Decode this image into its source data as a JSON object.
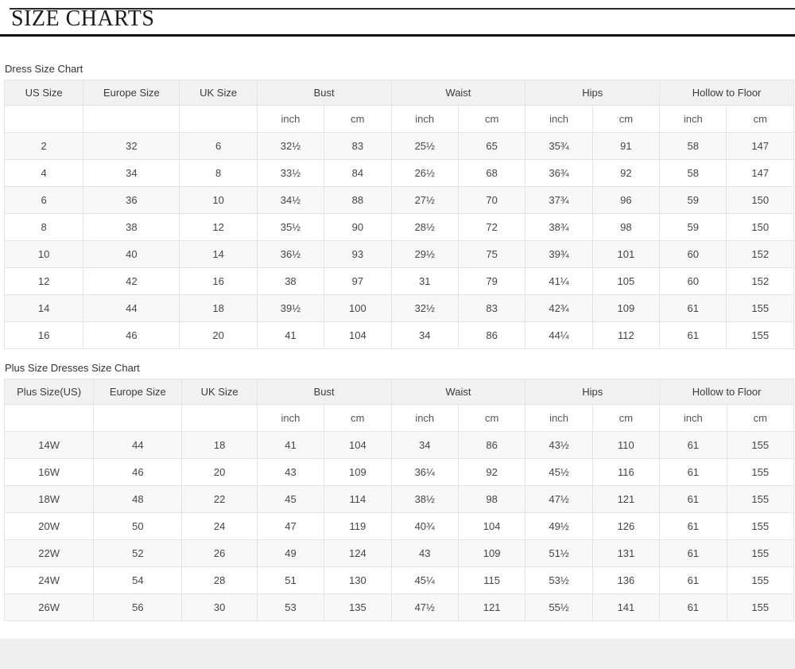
{
  "page": {
    "title": "SIZE CHARTS"
  },
  "colors": {
    "title_rule": "#111111",
    "table_border": "#e4e4e4",
    "header_bg": "#f1f1f1",
    "row_alt_bg": "#f8f8f8",
    "footer_bg": "#efefef"
  },
  "tables": [
    {
      "caption": "Dress Size Chart",
      "group_headers": [
        {
          "label": "US Size",
          "span": 1
        },
        {
          "label": "Europe Size",
          "span": 1
        },
        {
          "label": "UK Size",
          "span": 1
        },
        {
          "label": "Bust",
          "span": 2
        },
        {
          "label": "Waist",
          "span": 2
        },
        {
          "label": "Hips",
          "span": 2
        },
        {
          "label": "Hollow to Floor",
          "span": 2
        }
      ],
      "unit_row": [
        "",
        "",
        "",
        "inch",
        "cm",
        "inch",
        "cm",
        "inch",
        "cm",
        "inch",
        "cm"
      ],
      "rows": [
        [
          "2",
          "32",
          "6",
          "32½",
          "83",
          "25½",
          "65",
          "35¾",
          "91",
          "58",
          "147"
        ],
        [
          "4",
          "34",
          "8",
          "33½",
          "84",
          "26½",
          "68",
          "36¾",
          "92",
          "58",
          "147"
        ],
        [
          "6",
          "36",
          "10",
          "34½",
          "88",
          "27½",
          "70",
          "37¾",
          "96",
          "59",
          "150"
        ],
        [
          "8",
          "38",
          "12",
          "35½",
          "90",
          "28½",
          "72",
          "38¾",
          "98",
          "59",
          "150"
        ],
        [
          "10",
          "40",
          "14",
          "36½",
          "93",
          "29½",
          "75",
          "39¾",
          "101",
          "60",
          "152"
        ],
        [
          "12",
          "42",
          "16",
          "38",
          "97",
          "31",
          "79",
          "41¼",
          "105",
          "60",
          "152"
        ],
        [
          "14",
          "44",
          "18",
          "39½",
          "100",
          "32½",
          "83",
          "42¾",
          "109",
          "61",
          "155"
        ],
        [
          "16",
          "46",
          "20",
          "41",
          "104",
          "34",
          "86",
          "44¼",
          "112",
          "61",
          "155"
        ]
      ]
    },
    {
      "caption": "Plus Size Dresses Size Chart",
      "group_headers": [
        {
          "label": "Plus Size(US)",
          "span": 1
        },
        {
          "label": "Europe Size",
          "span": 1
        },
        {
          "label": "UK Size",
          "span": 1
        },
        {
          "label": "Bust",
          "span": 2
        },
        {
          "label": "Waist",
          "span": 2
        },
        {
          "label": "Hips",
          "span": 2
        },
        {
          "label": "Hollow to Floor",
          "span": 2
        }
      ],
      "unit_row": [
        "",
        "",
        "",
        "inch",
        "cm",
        "inch",
        "cm",
        "inch",
        "cm",
        "inch",
        "cm"
      ],
      "rows": [
        [
          "14W",
          "44",
          "18",
          "41",
          "104",
          "34",
          "86",
          "43½",
          "110",
          "61",
          "155"
        ],
        [
          "16W",
          "46",
          "20",
          "43",
          "109",
          "36¼",
          "92",
          "45½",
          "116",
          "61",
          "155"
        ],
        [
          "18W",
          "48",
          "22",
          "45",
          "114",
          "38½",
          "98",
          "47½",
          "121",
          "61",
          "155"
        ],
        [
          "20W",
          "50",
          "24",
          "47",
          "119",
          "40¾",
          "104",
          "49½",
          "126",
          "61",
          "155"
        ],
        [
          "22W",
          "52",
          "26",
          "49",
          "124",
          "43",
          "109",
          "51½",
          "131",
          "61",
          "155"
        ],
        [
          "24W",
          "54",
          "28",
          "51",
          "130",
          "45¼",
          "115",
          "53½",
          "136",
          "61",
          "155"
        ],
        [
          "26W",
          "56",
          "30",
          "53",
          "135",
          "47½",
          "121",
          "55½",
          "141",
          "61",
          "155"
        ]
      ]
    }
  ]
}
